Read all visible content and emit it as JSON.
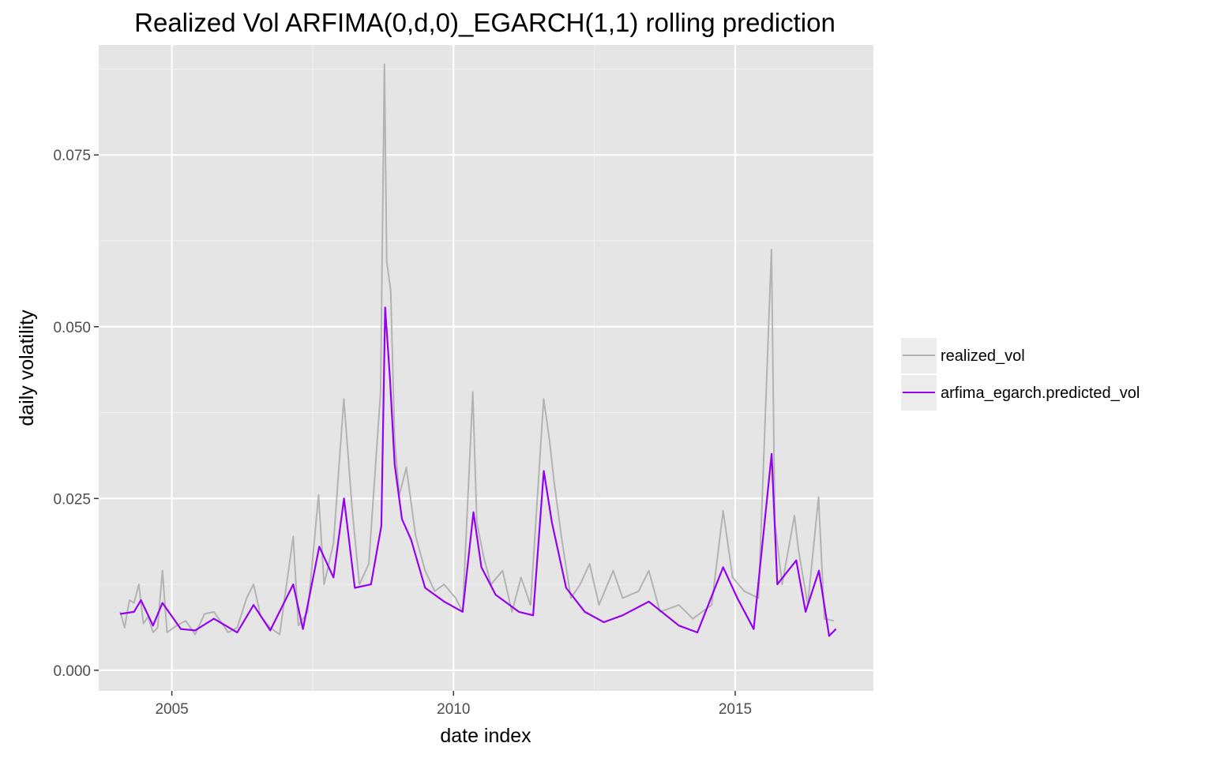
{
  "chart_data": {
    "type": "line",
    "title": "Realized Vol ARFIMA(0,d,0)_EGARCH(1,1) rolling prediction",
    "xlabel": "date index",
    "ylabel": "daily volatility",
    "xlim": [
      "2003-09-15",
      "2017-06-15"
    ],
    "ylim": [
      -0.003,
      0.091
    ],
    "x_ticks": [
      {
        "value": "2005-01-01",
        "label": "2005"
      },
      {
        "value": "2010-01-01",
        "label": "2010"
      },
      {
        "value": "2015-01-01",
        "label": "2015"
      }
    ],
    "y_ticks": [
      {
        "value": 0.0,
        "label": "0.000"
      },
      {
        "value": 0.025,
        "label": "0.025"
      },
      {
        "value": 0.05,
        "label": "0.050"
      },
      {
        "value": 0.075,
        "label": "0.075"
      }
    ],
    "grid": true,
    "legend_position": "right",
    "series": [
      {
        "name": "realized_vol",
        "color": "#b3b3b3",
        "points": [
          [
            "2004-02-01",
            0.0085
          ],
          [
            "2004-03-01",
            0.0062
          ],
          [
            "2004-04-01",
            0.0102
          ],
          [
            "2004-05-01",
            0.0098
          ],
          [
            "2004-06-01",
            0.0125
          ],
          [
            "2004-07-01",
            0.0068
          ],
          [
            "2004-08-01",
            0.0078
          ],
          [
            "2004-09-01",
            0.0055
          ],
          [
            "2004-10-01",
            0.0062
          ],
          [
            "2004-11-01",
            0.0145
          ],
          [
            "2004-12-01",
            0.0055
          ],
          [
            "2005-02-01",
            0.0065
          ],
          [
            "2005-04-01",
            0.0072
          ],
          [
            "2005-06-01",
            0.0052
          ],
          [
            "2005-08-01",
            0.0082
          ],
          [
            "2005-10-01",
            0.0085
          ],
          [
            "2006-01-01",
            0.0055
          ],
          [
            "2006-03-01",
            0.0062
          ],
          [
            "2006-05-01",
            0.0105
          ],
          [
            "2006-06-15",
            0.0125
          ],
          [
            "2006-08-01",
            0.0078
          ],
          [
            "2006-10-01",
            0.0062
          ],
          [
            "2006-12-01",
            0.0052
          ],
          [
            "2007-02-27",
            0.0195
          ],
          [
            "2007-04-01",
            0.0065
          ],
          [
            "2007-06-01",
            0.0085
          ],
          [
            "2007-08-10",
            0.0255
          ],
          [
            "2007-09-15",
            0.0125
          ],
          [
            "2007-11-15",
            0.0185
          ],
          [
            "2008-01-21",
            0.0395
          ],
          [
            "2008-03-15",
            0.0235
          ],
          [
            "2008-05-01",
            0.0125
          ],
          [
            "2008-07-01",
            0.0155
          ],
          [
            "2008-09-15",
            0.0405
          ],
          [
            "2008-10-10",
            0.0882
          ],
          [
            "2008-10-25",
            0.0595
          ],
          [
            "2008-11-20",
            0.0552
          ],
          [
            "2008-12-15",
            0.0335
          ],
          [
            "2009-01-15",
            0.0255
          ],
          [
            "2009-03-01",
            0.0295
          ],
          [
            "2009-05-01",
            0.0195
          ],
          [
            "2009-07-01",
            0.0145
          ],
          [
            "2009-09-01",
            0.0115
          ],
          [
            "2009-11-01",
            0.0125
          ],
          [
            "2010-01-15",
            0.0105
          ],
          [
            "2010-03-01",
            0.0085
          ],
          [
            "2010-05-06",
            0.0405
          ],
          [
            "2010-06-01",
            0.0215
          ],
          [
            "2010-07-15",
            0.0165
          ],
          [
            "2010-09-01",
            0.0125
          ],
          [
            "2010-11-15",
            0.0145
          ],
          [
            "2011-01-15",
            0.0085
          ],
          [
            "2011-03-15",
            0.0135
          ],
          [
            "2011-05-15",
            0.0095
          ],
          [
            "2011-08-08",
            0.0395
          ],
          [
            "2011-09-15",
            0.0335
          ],
          [
            "2011-10-15",
            0.0275
          ],
          [
            "2011-12-01",
            0.0195
          ],
          [
            "2012-02-01",
            0.0105
          ],
          [
            "2012-04-01",
            0.0125
          ],
          [
            "2012-06-01",
            0.0155
          ],
          [
            "2012-08-01",
            0.0095
          ],
          [
            "2012-11-01",
            0.0145
          ],
          [
            "2013-01-01",
            0.0105
          ],
          [
            "2013-04-15",
            0.0115
          ],
          [
            "2013-06-20",
            0.0145
          ],
          [
            "2013-09-01",
            0.0085
          ],
          [
            "2014-01-01",
            0.0095
          ],
          [
            "2014-04-01",
            0.0075
          ],
          [
            "2014-08-01",
            0.0095
          ],
          [
            "2014-10-15",
            0.0232
          ],
          [
            "2014-12-15",
            0.0135
          ],
          [
            "2015-03-01",
            0.0115
          ],
          [
            "2015-06-01",
            0.0105
          ],
          [
            "2015-08-24",
            0.0612
          ],
          [
            "2015-09-15",
            0.0215
          ],
          [
            "2015-11-01",
            0.0125
          ],
          [
            "2016-01-20",
            0.0225
          ],
          [
            "2016-02-15",
            0.0175
          ],
          [
            "2016-04-15",
            0.0095
          ],
          [
            "2016-06-24",
            0.0252
          ],
          [
            "2016-08-01",
            0.0075
          ],
          [
            "2016-10-01",
            0.0072
          ]
        ]
      },
      {
        "name": "arfima_egarch.predicted_vol",
        "color": "#9400f0",
        "points": [
          [
            "2004-02-01",
            0.0082
          ],
          [
            "2004-05-01",
            0.0085
          ],
          [
            "2004-06-15",
            0.0102
          ],
          [
            "2004-09-01",
            0.0065
          ],
          [
            "2004-11-01",
            0.0098
          ],
          [
            "2005-03-01",
            0.006
          ],
          [
            "2005-06-01",
            0.0058
          ],
          [
            "2005-10-01",
            0.0075
          ],
          [
            "2006-03-01",
            0.0055
          ],
          [
            "2006-06-15",
            0.0095
          ],
          [
            "2006-10-01",
            0.0058
          ],
          [
            "2007-02-27",
            0.0125
          ],
          [
            "2007-05-01",
            0.006
          ],
          [
            "2007-08-15",
            0.018
          ],
          [
            "2007-11-15",
            0.0135
          ],
          [
            "2008-01-22",
            0.025
          ],
          [
            "2008-04-01",
            0.012
          ],
          [
            "2008-07-15",
            0.0125
          ],
          [
            "2008-09-20",
            0.021
          ],
          [
            "2008-10-15",
            0.0528
          ],
          [
            "2008-11-15",
            0.0425
          ],
          [
            "2008-12-15",
            0.03
          ],
          [
            "2009-02-01",
            0.022
          ],
          [
            "2009-04-01",
            0.019
          ],
          [
            "2009-07-01",
            0.012
          ],
          [
            "2009-11-01",
            0.01
          ],
          [
            "2010-03-01",
            0.0085
          ],
          [
            "2010-05-10",
            0.023
          ],
          [
            "2010-07-01",
            0.015
          ],
          [
            "2010-10-01",
            0.011
          ],
          [
            "2011-03-01",
            0.0085
          ],
          [
            "2011-06-01",
            0.008
          ],
          [
            "2011-08-09",
            0.029
          ],
          [
            "2011-10-01",
            0.0215
          ],
          [
            "2012-01-01",
            0.012
          ],
          [
            "2012-05-01",
            0.0085
          ],
          [
            "2012-09-01",
            0.007
          ],
          [
            "2013-01-01",
            0.008
          ],
          [
            "2013-06-20",
            0.01
          ],
          [
            "2014-01-01",
            0.0065
          ],
          [
            "2014-05-01",
            0.0055
          ],
          [
            "2014-10-15",
            0.015
          ],
          [
            "2015-01-15",
            0.0105
          ],
          [
            "2015-05-01",
            0.006
          ],
          [
            "2015-08-25",
            0.0315
          ],
          [
            "2015-10-01",
            0.0125
          ],
          [
            "2016-02-01",
            0.016
          ],
          [
            "2016-04-01",
            0.0085
          ],
          [
            "2016-06-27",
            0.0145
          ],
          [
            "2016-09-01",
            0.005
          ],
          [
            "2016-10-15",
            0.006
          ]
        ]
      }
    ]
  }
}
